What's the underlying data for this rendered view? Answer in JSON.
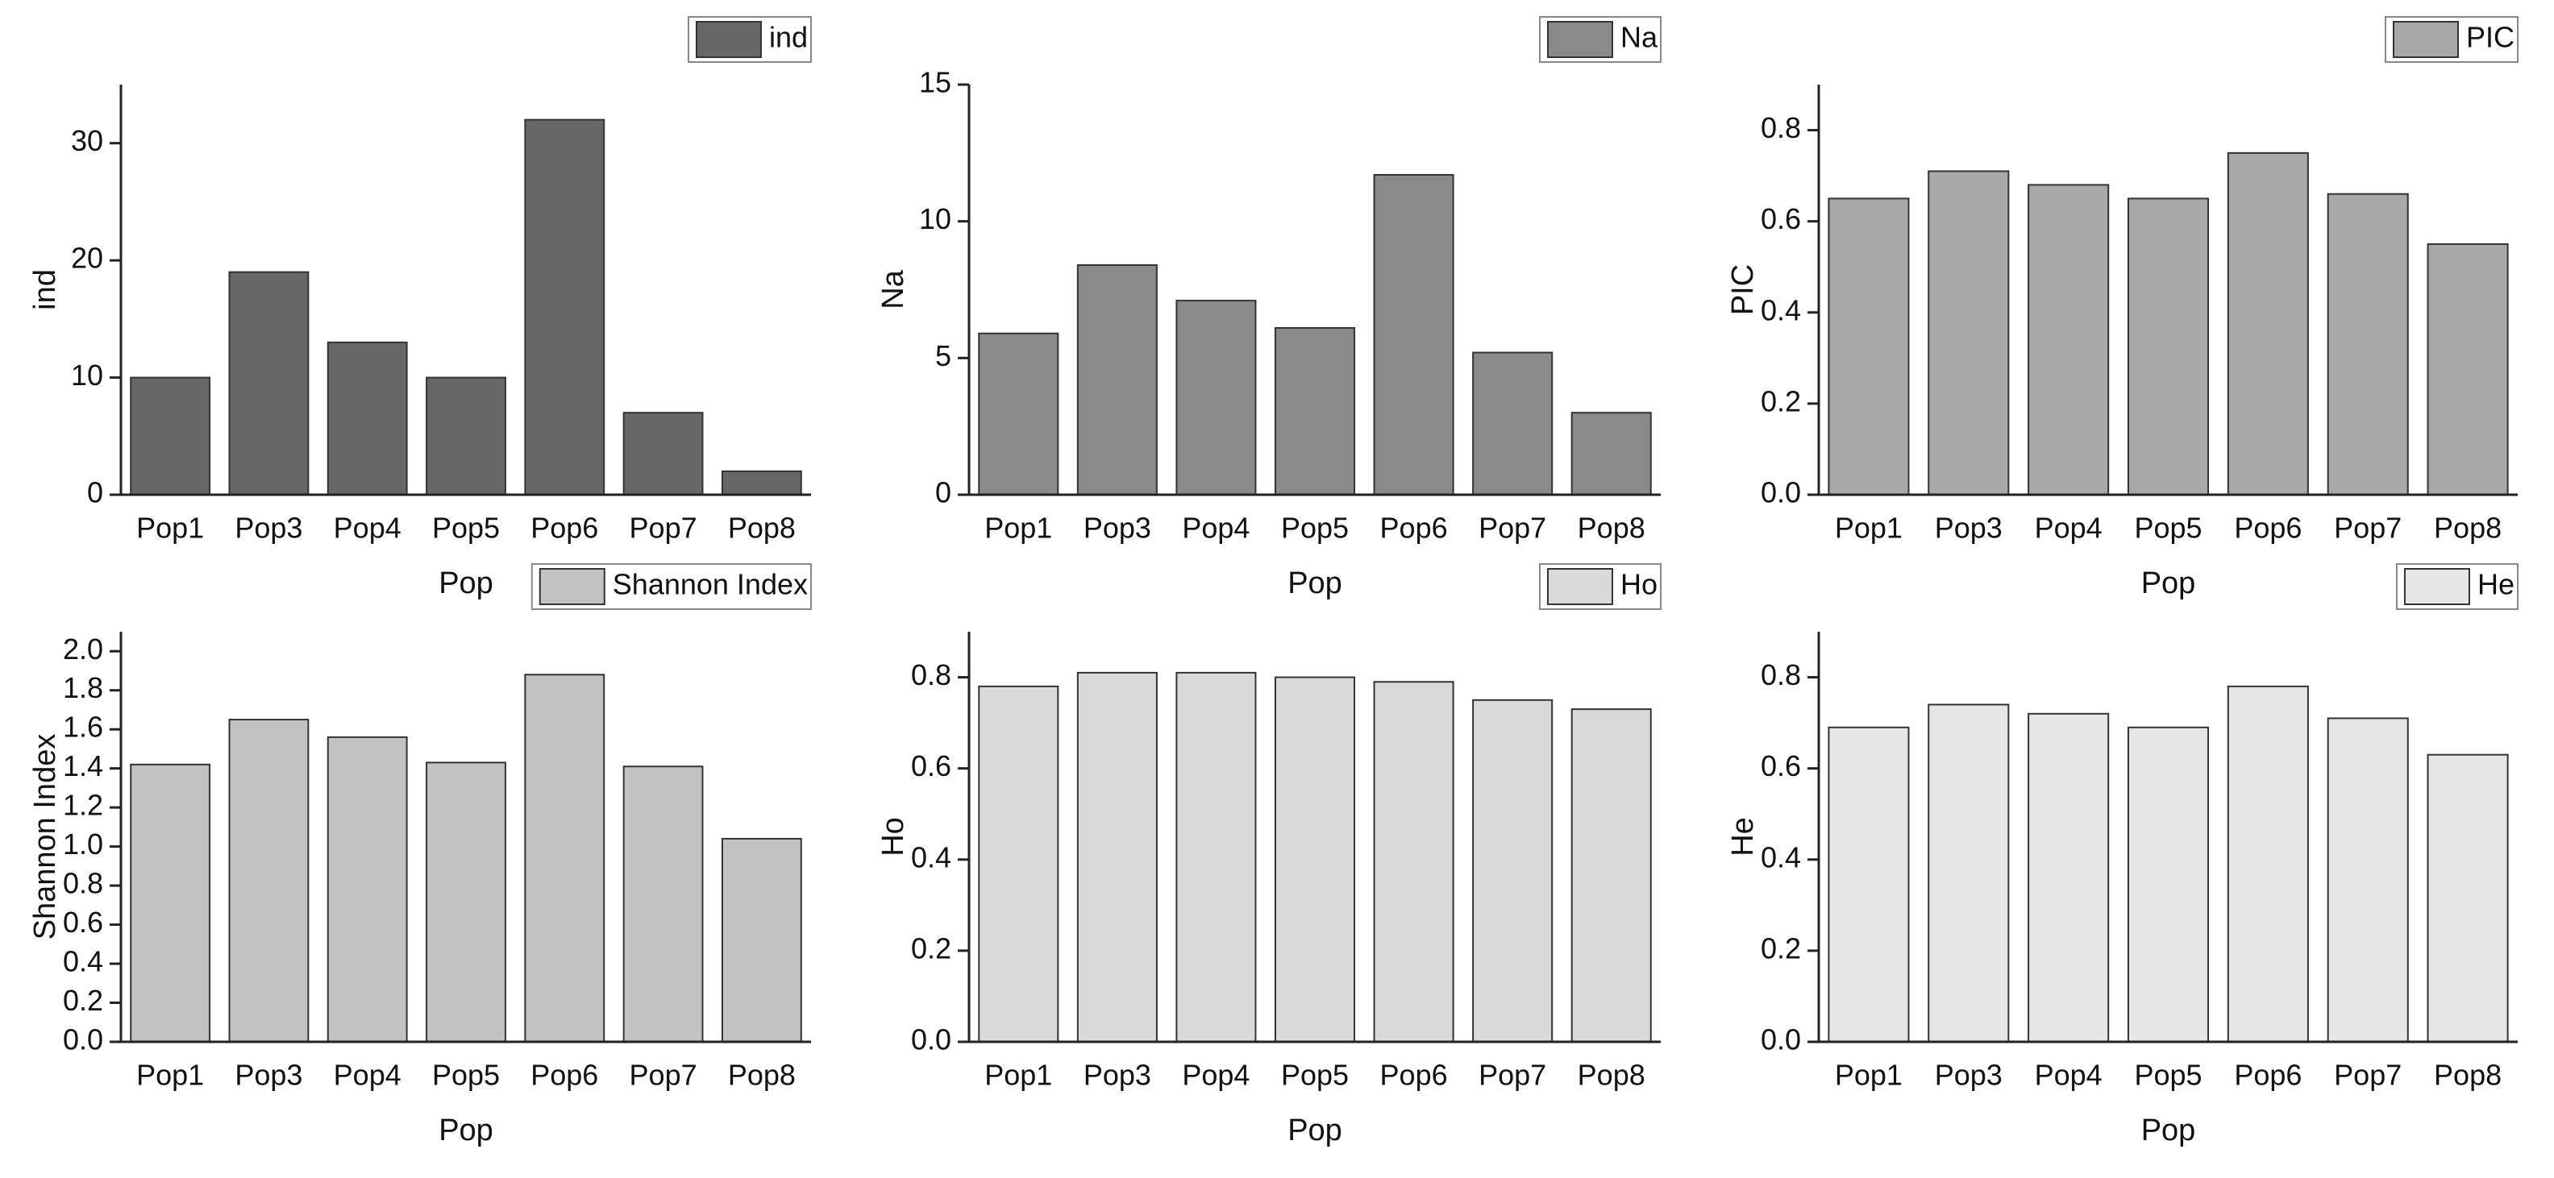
{
  "chart_data": [
    {
      "type": "bar",
      "categories": [
        "Pop1",
        "Pop3",
        "Pop4",
        "Pop5",
        "Pop6",
        "Pop7",
        "Pop8"
      ],
      "xlabel": "Pop",
      "ylabel": "ind",
      "series": [
        {
          "name": "ind",
          "color": "#676767",
          "values": [
            10,
            19,
            13,
            10,
            32,
            7,
            2
          ]
        }
      ],
      "ylim": [
        0,
        35
      ],
      "yticks": [
        0,
        10,
        20,
        30
      ],
      "legend": "top-right"
    },
    {
      "type": "bar",
      "categories": [
        "Pop1",
        "Pop3",
        "Pop4",
        "Pop5",
        "Pop6",
        "Pop7",
        "Pop8"
      ],
      "xlabel": "Pop",
      "ylabel": "Na",
      "series": [
        {
          "name": "Na",
          "color": "#8a8a8a",
          "values": [
            5.9,
            8.4,
            7.1,
            6.1,
            11.7,
            5.2,
            3.0
          ]
        }
      ],
      "ylim": [
        0,
        15
      ],
      "yticks": [
        0,
        5,
        10,
        15
      ],
      "legend": "top-right"
    },
    {
      "type": "bar",
      "categories": [
        "Pop1",
        "Pop3",
        "Pop4",
        "Pop5",
        "Pop6",
        "Pop7",
        "Pop8"
      ],
      "xlabel": "Pop",
      "ylabel": "PIC",
      "series": [
        {
          "name": "PIC",
          "color": "#a8a8a8",
          "values": [
            0.65,
            0.71,
            0.68,
            0.65,
            0.75,
            0.66,
            0.55
          ]
        }
      ],
      "ylim": [
        0,
        0.9
      ],
      "yticks": [
        {
          "value": 0,
          "label": "0.0"
        },
        0.2,
        0.4,
        0.6,
        0.8
      ],
      "legend": "top-right"
    },
    {
      "type": "bar",
      "categories": [
        "Pop1",
        "Pop3",
        "Pop4",
        "Pop5",
        "Pop6",
        "Pop7",
        "Pop8"
      ],
      "xlabel": "Pop",
      "ylabel": "Shannon Index",
      "series": [
        {
          "name": "Shannon Index",
          "color": "#c2c2c2",
          "values": [
            1.42,
            1.65,
            1.56,
            1.43,
            1.88,
            1.41,
            1.04
          ]
        }
      ],
      "ylim": [
        0,
        2.1
      ],
      "yticks": [
        {
          "value": 0,
          "label": "0.0"
        },
        0.2,
        0.4,
        0.6,
        0.8,
        {
          "value": 1,
          "label": "1.0"
        },
        1.2,
        1.4,
        1.6,
        1.8,
        {
          "value": 2,
          "label": "2.0"
        }
      ],
      "legend": "top-right"
    },
    {
      "type": "bar",
      "categories": [
        "Pop1",
        "Pop3",
        "Pop4",
        "Pop5",
        "Pop6",
        "Pop7",
        "Pop8"
      ],
      "xlabel": "Pop",
      "ylabel": "Ho",
      "series": [
        {
          "name": "Ho",
          "color": "#d9d9d9",
          "values": [
            0.78,
            0.81,
            0.81,
            0.8,
            0.79,
            0.75,
            0.73
          ]
        }
      ],
      "ylim": [
        0,
        0.9
      ],
      "yticks": [
        {
          "value": 0,
          "label": "0.0"
        },
        0.2,
        0.4,
        0.6,
        0.8
      ],
      "legend": "top-right"
    },
    {
      "type": "bar",
      "categories": [
        "Pop1",
        "Pop3",
        "Pop4",
        "Pop5",
        "Pop6",
        "Pop7",
        "Pop8"
      ],
      "xlabel": "Pop",
      "ylabel": "He",
      "series": [
        {
          "name": "He",
          "color": "#e6e6e6",
          "values": [
            0.69,
            0.74,
            0.72,
            0.69,
            0.78,
            0.71,
            0.63
          ]
        }
      ],
      "ylim": [
        0,
        0.9
      ],
      "yticks": [
        {
          "value": 0,
          "label": "0.0"
        },
        0.2,
        0.4,
        0.6,
        0.8
      ],
      "legend": "top-right"
    }
  ]
}
